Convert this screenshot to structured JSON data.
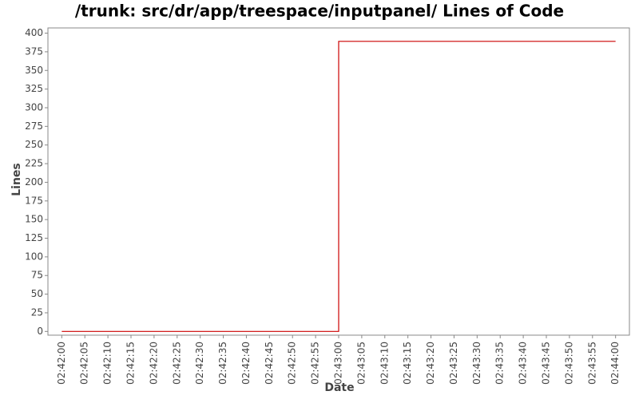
{
  "chart_data": {
    "type": "line",
    "title": "/trunk: src/dr/app/treespace/inputpanel/ Lines of Code",
    "x_label": "Date",
    "y_label": "Lines",
    "x": [
      "02:42:00",
      "02:43:00",
      "02:43:00",
      "02:44:00"
    ],
    "values": [
      0,
      0,
      389,
      389
    ],
    "color": "#cc0000",
    "xlim": [
      "02:41:57",
      "02:44:03"
    ],
    "xticks": [
      "02:42:00",
      "02:42:05",
      "02:42:10",
      "02:42:15",
      "02:42:20",
      "02:42:25",
      "02:42:30",
      "02:42:35",
      "02:42:40",
      "02:42:45",
      "02:42:50",
      "02:42:55",
      "02:43:00",
      "02:43:05",
      "02:43:10",
      "02:43:15",
      "02:43:20",
      "02:43:25",
      "02:43:30",
      "02:43:35",
      "02:43:40",
      "02:43:45",
      "02:43:50",
      "02:43:55",
      "02:44:00"
    ],
    "ylim": [
      -5,
      407
    ],
    "yticks": [
      0,
      25,
      50,
      75,
      100,
      125,
      150,
      175,
      200,
      225,
      250,
      275,
      300,
      325,
      350,
      375,
      400
    ]
  }
}
